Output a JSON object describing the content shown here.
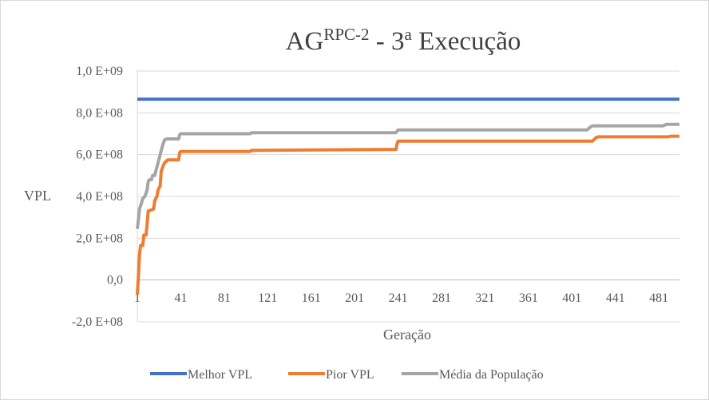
{
  "chart_data": {
    "type": "line",
    "title": {
      "main": "AG",
      "superscript": "RPC-2",
      "rest": " - 3",
      "ordinal": "a",
      "end": " Execução"
    },
    "xlabel": "Geração",
    "ylabel": "VPL",
    "xlim": [
      1,
      500
    ],
    "ylim": [
      -200000000,
      1000000000
    ],
    "x_ticks": [
      1,
      41,
      81,
      121,
      161,
      201,
      241,
      281,
      321,
      361,
      401,
      441,
      481
    ],
    "y_ticks": [
      {
        "value": 1000000000,
        "label": "1,0 E+09"
      },
      {
        "value": 800000000,
        "label": "8,0 E+08"
      },
      {
        "value": 600000000,
        "label": "6,0 E+08"
      },
      {
        "value": 400000000,
        "label": "4,0 E+08"
      },
      {
        "value": 200000000,
        "label": "2,0 E+08"
      },
      {
        "value": 0,
        "label": "0,0"
      },
      {
        "value": -200000000,
        "label": "-2,0 E+08"
      }
    ],
    "grid": "horizontal",
    "legend_position": "bottom",
    "series": [
      {
        "name": "Melhor VPL",
        "color": "#4472c4",
        "points": [
          [
            1,
            865000000
          ],
          [
            500,
            865000000
          ]
        ]
      },
      {
        "name": "Pior VPL",
        "color": "#ed7d31",
        "points": [
          [
            1,
            -70000000
          ],
          [
            2,
            20000000
          ],
          [
            3,
            120000000
          ],
          [
            4,
            165000000
          ],
          [
            6,
            165000000
          ],
          [
            7,
            215000000
          ],
          [
            9,
            215000000
          ],
          [
            10,
            265000000
          ],
          [
            11,
            330000000
          ],
          [
            14,
            335000000
          ],
          [
            16,
            340000000
          ],
          [
            17,
            380000000
          ],
          [
            19,
            400000000
          ],
          [
            20,
            430000000
          ],
          [
            22,
            450000000
          ],
          [
            23,
            520000000
          ],
          [
            25,
            550000000
          ],
          [
            26,
            560000000
          ],
          [
            28,
            570000000
          ],
          [
            29,
            575000000
          ],
          [
            39,
            575000000
          ],
          [
            40,
            610000000
          ],
          [
            41,
            615000000
          ],
          [
            105,
            615000000
          ],
          [
            106,
            620000000
          ],
          [
            239,
            625000000
          ],
          [
            240,
            650000000
          ],
          [
            241,
            665000000
          ],
          [
            420,
            665000000
          ],
          [
            423,
            680000000
          ],
          [
            425,
            685000000
          ],
          [
            490,
            685000000
          ],
          [
            492,
            688000000
          ],
          [
            500,
            688000000
          ]
        ]
      },
      {
        "name": "Média da População",
        "color": "#a5a5a5",
        "points": [
          [
            1,
            245000000
          ],
          [
            2,
            290000000
          ],
          [
            3,
            340000000
          ],
          [
            5,
            370000000
          ],
          [
            6,
            390000000
          ],
          [
            8,
            400000000
          ],
          [
            10,
            430000000
          ],
          [
            11,
            470000000
          ],
          [
            12,
            480000000
          ],
          [
            14,
            480000000
          ],
          [
            15,
            500000000
          ],
          [
            17,
            500000000
          ],
          [
            18,
            520000000
          ],
          [
            20,
            560000000
          ],
          [
            22,
            600000000
          ],
          [
            24,
            640000000
          ],
          [
            26,
            670000000
          ],
          [
            28,
            675000000
          ],
          [
            39,
            675000000
          ],
          [
            40,
            695000000
          ],
          [
            41,
            700000000
          ],
          [
            105,
            700000000
          ],
          [
            106,
            705000000
          ],
          [
            239,
            705000000
          ],
          [
            240,
            712000000
          ],
          [
            241,
            718000000
          ],
          [
            415,
            718000000
          ],
          [
            418,
            732000000
          ],
          [
            420,
            738000000
          ],
          [
            485,
            738000000
          ],
          [
            488,
            745000000
          ],
          [
            500,
            745000000
          ]
        ]
      }
    ]
  }
}
